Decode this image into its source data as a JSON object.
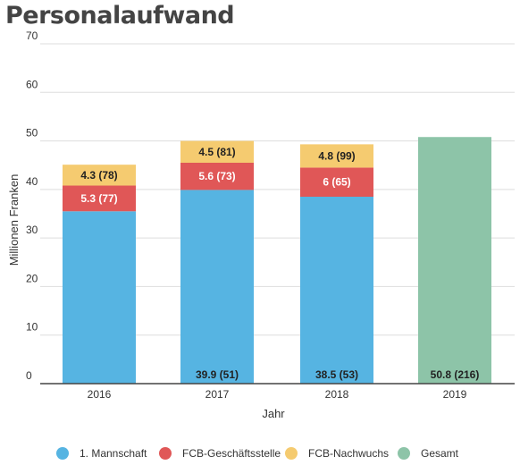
{
  "chart_data": {
    "type": "bar",
    "stacked": true,
    "title": "Personalaufwand",
    "xlabel": "Jahr",
    "ylabel": "Millionen Franken",
    "ylim": [
      0,
      70
    ],
    "yticks": [
      0,
      10,
      20,
      30,
      40,
      50,
      60,
      70
    ],
    "grid": true,
    "legend_position": "bottom",
    "categories": [
      "2016",
      "2017",
      "2018",
      "2019"
    ],
    "series": [
      {
        "name": "1. Mannschaft",
        "color": "#56b4e2",
        "values": [
          35.5,
          39.9,
          38.5,
          null
        ],
        "labels": [
          "",
          "39.9 (51)",
          "38.5 (53)",
          ""
        ],
        "label_color": "#222222"
      },
      {
        "name": "FCB-Geschäftsstelle",
        "color": "#e05757",
        "values": [
          5.3,
          5.6,
          6,
          null
        ],
        "labels": [
          "5.3 (77)",
          "5.6 (73)",
          "6 (65)",
          ""
        ],
        "label_color": "#ffffff"
      },
      {
        "name": "FCB-Nachwuchs",
        "color": "#f5cb70",
        "values": [
          4.3,
          4.5,
          4.8,
          null
        ],
        "labels": [
          "4.3 (78)",
          "4.5 (81)",
          "4.8 (99)",
          ""
        ],
        "label_color": "#222222"
      },
      {
        "name": "Gesamt",
        "color": "#8dc4a8",
        "values": [
          null,
          null,
          null,
          50.8
        ],
        "labels": [
          "",
          "",
          "",
          "50.8 (216)"
        ],
        "label_color": "#222222"
      }
    ]
  }
}
